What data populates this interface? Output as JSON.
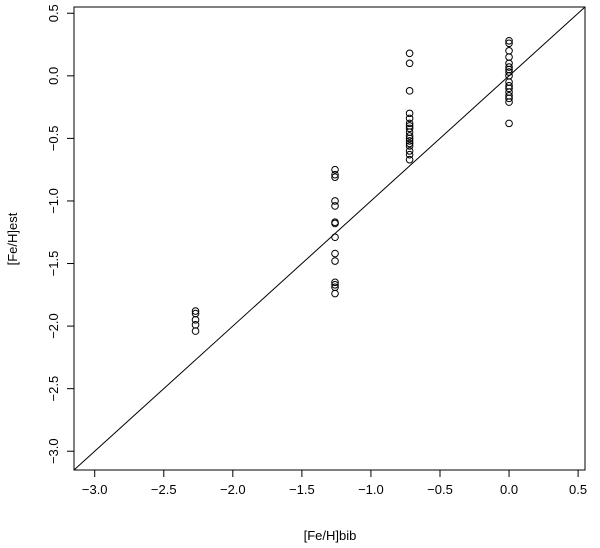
{
  "chart_data": {
    "type": "scatter",
    "xlabel": "[Fe/H]bib",
    "ylabel": "[Fe/H]est",
    "xlim": [
      -3.15,
      0.55
    ],
    "ylim": [
      -3.15,
      0.55
    ],
    "xticks": [
      -3.0,
      -2.5,
      -2.0,
      -1.5,
      -1.0,
      -0.5,
      0.0,
      0.5
    ],
    "yticks": [
      -3.0,
      -2.5,
      -2.0,
      -1.5,
      -1.0,
      -0.5,
      0.0,
      0.5
    ],
    "xtick_labels": [
      "−3.0",
      "−2.5",
      "−2.0",
      "−1.5",
      "−1.0",
      "−0.5",
      "0.0",
      "0.5"
    ],
    "ytick_labels": [
      "−3.0",
      "−2.5",
      "−2.0",
      "−1.5",
      "−1.0",
      "−0.5",
      "0.0",
      "0.5"
    ],
    "grid": false,
    "reference_line": {
      "type": "identity",
      "slope": 1,
      "intercept": 0
    },
    "series": [
      {
        "marker": "open-circle",
        "points": [
          [
            -2.27,
            -1.88
          ],
          [
            -2.27,
            -1.9
          ],
          [
            -2.27,
            -1.95
          ],
          [
            -2.27,
            -1.99
          ],
          [
            -2.27,
            -2.04
          ],
          [
            -1.26,
            -0.75
          ],
          [
            -1.26,
            -0.79
          ],
          [
            -1.26,
            -0.81
          ],
          [
            -1.26,
            -1.0
          ],
          [
            -1.26,
            -1.04
          ],
          [
            -1.26,
            -1.17
          ],
          [
            -1.26,
            -1.18
          ],
          [
            -1.26,
            -1.29
          ],
          [
            -1.26,
            -1.42
          ],
          [
            -1.26,
            -1.48
          ],
          [
            -1.26,
            -1.65
          ],
          [
            -1.26,
            -1.67
          ],
          [
            -1.26,
            -1.69
          ],
          [
            -1.26,
            -1.74
          ],
          [
            -0.72,
            0.18
          ],
          [
            -0.72,
            0.1
          ],
          [
            -0.72,
            -0.12
          ],
          [
            -0.72,
            -0.3
          ],
          [
            -0.72,
            -0.34
          ],
          [
            -0.72,
            -0.38
          ],
          [
            -0.72,
            -0.4
          ],
          [
            -0.72,
            -0.42
          ],
          [
            -0.72,
            -0.45
          ],
          [
            -0.72,
            -0.48
          ],
          [
            -0.72,
            -0.5
          ],
          [
            -0.72,
            -0.52
          ],
          [
            -0.72,
            -0.54
          ],
          [
            -0.72,
            -0.56
          ],
          [
            -0.72,
            -0.6
          ],
          [
            -0.72,
            -0.63
          ],
          [
            -0.72,
            -0.67
          ],
          [
            0.0,
            0.28
          ],
          [
            0.0,
            0.26
          ],
          [
            0.0,
            0.2
          ],
          [
            0.0,
            0.15
          ],
          [
            0.0,
            0.1
          ],
          [
            0.0,
            0.07
          ],
          [
            0.0,
            0.05
          ],
          [
            0.0,
            0.03
          ],
          [
            0.0,
            0.0
          ],
          [
            0.0,
            -0.05
          ],
          [
            0.0,
            -0.08
          ],
          [
            0.0,
            -0.1
          ],
          [
            0.0,
            -0.13
          ],
          [
            0.0,
            -0.16
          ],
          [
            0.0,
            -0.18
          ],
          [
            0.0,
            -0.21
          ],
          [
            0.0,
            -0.38
          ]
        ]
      }
    ]
  }
}
